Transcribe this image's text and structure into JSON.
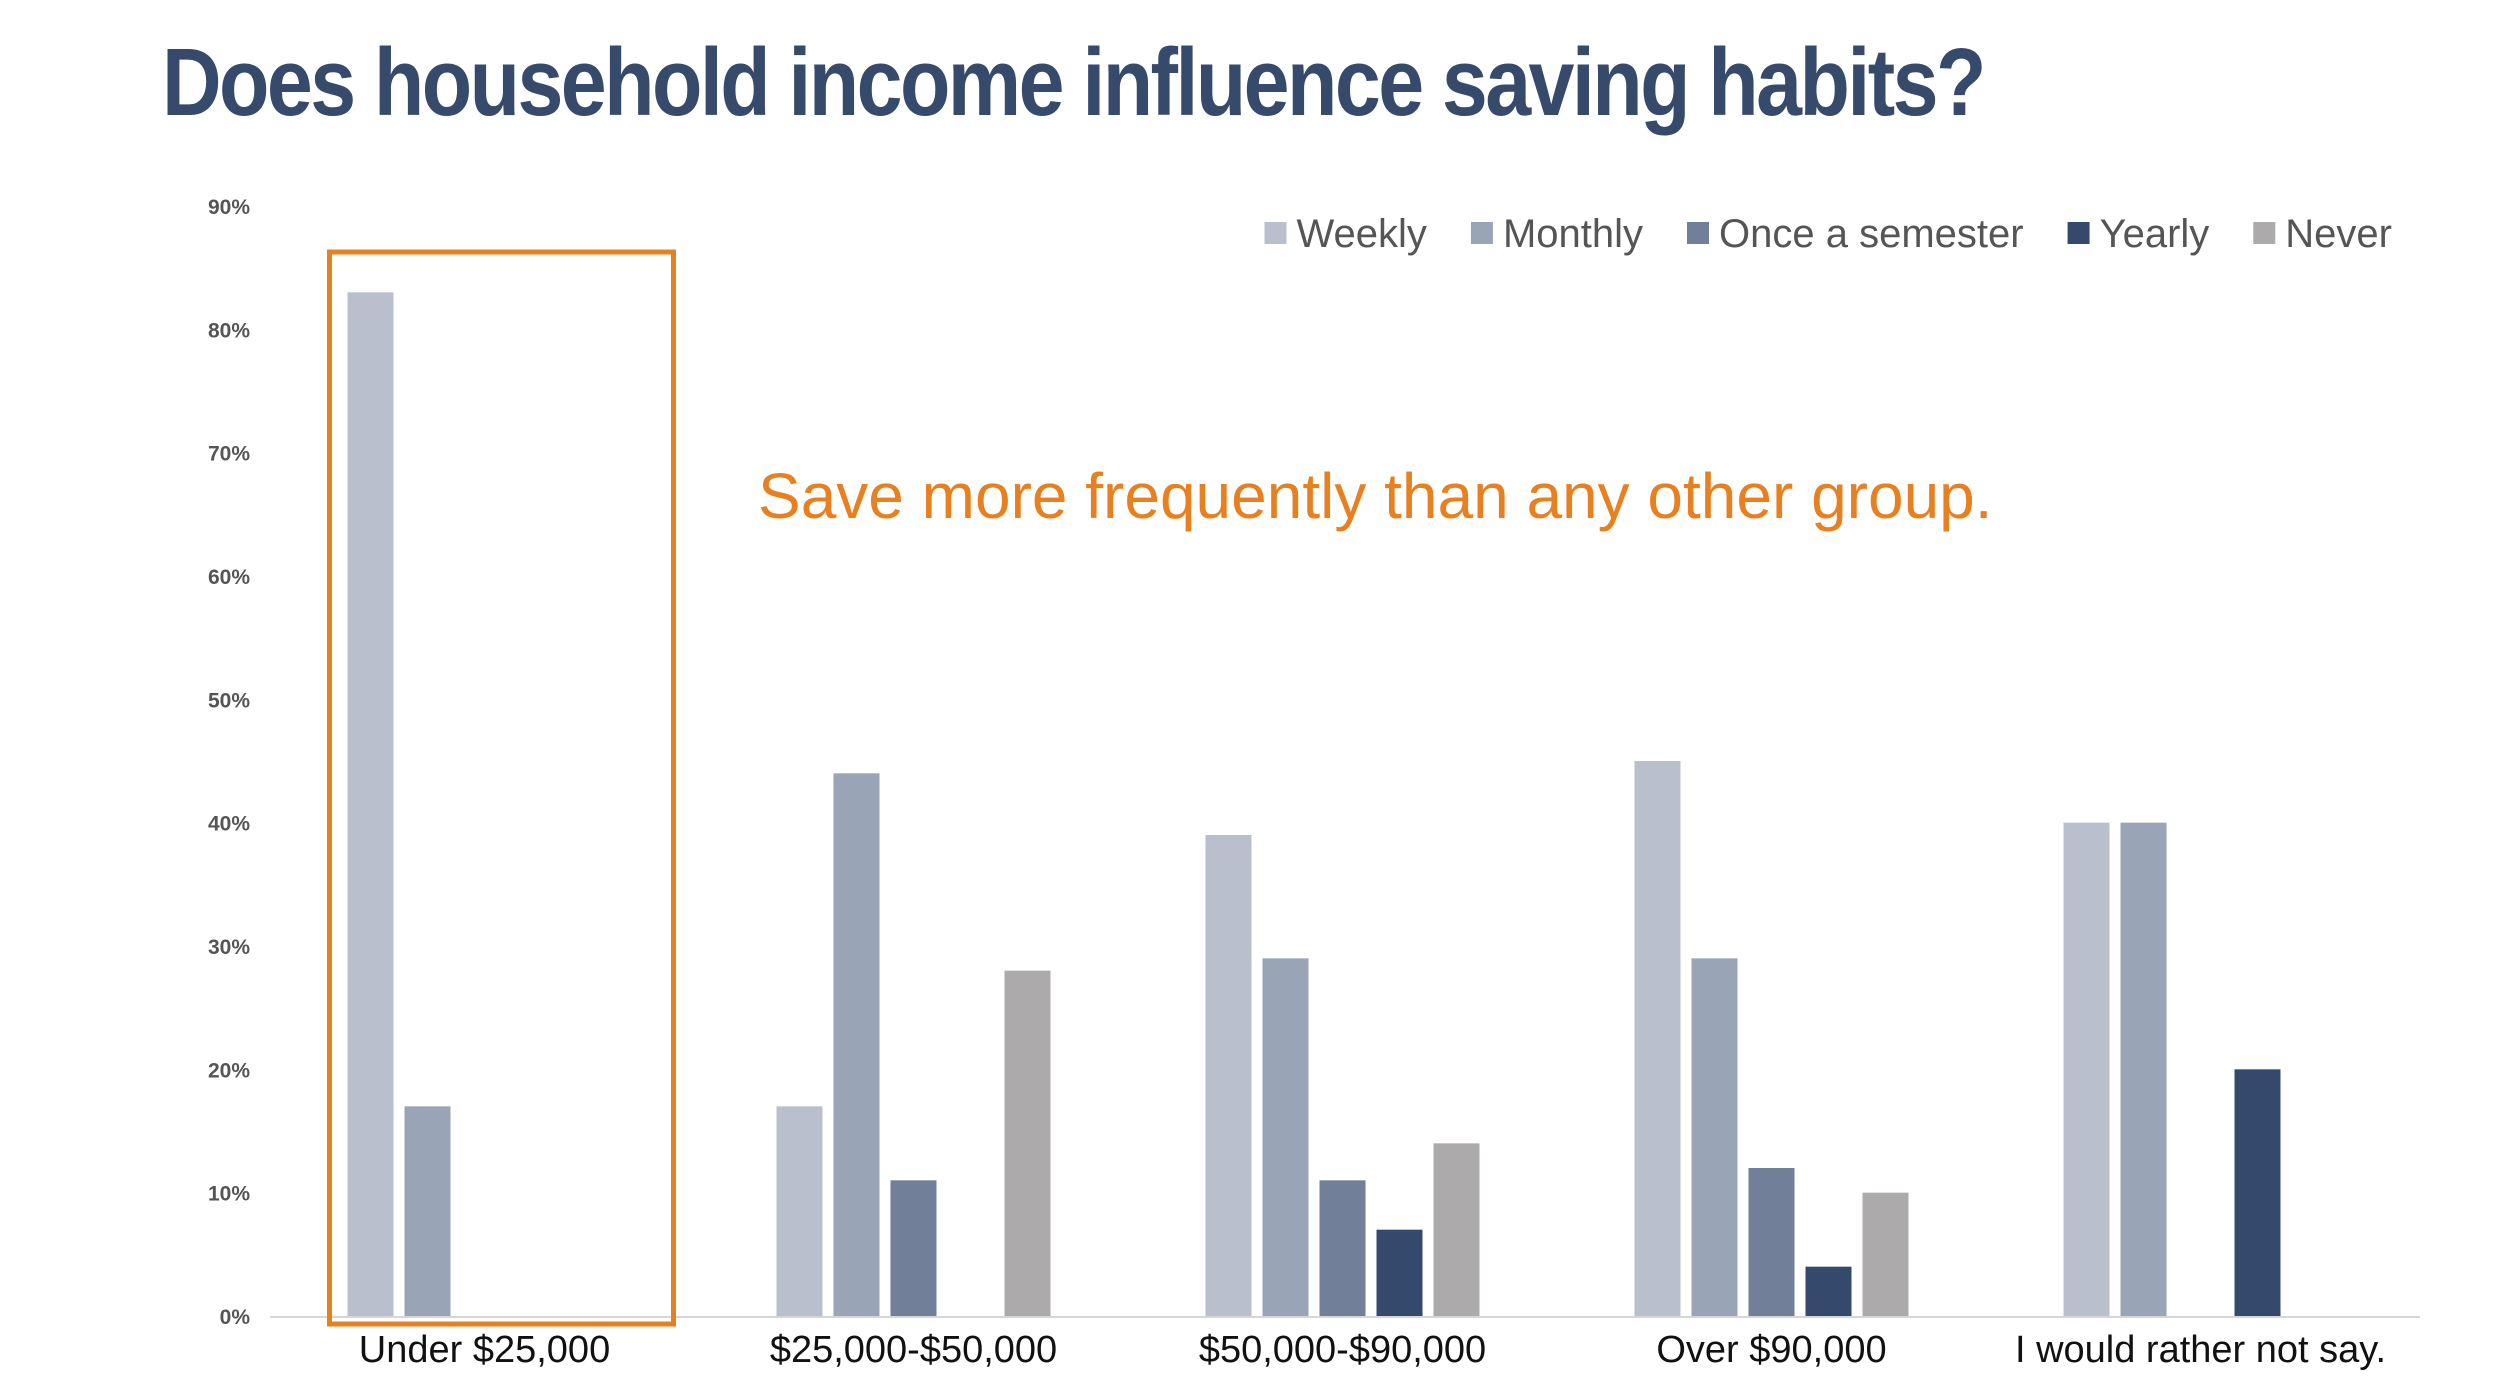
{
  "title": "Does household income influence saving habits?",
  "chart_data": {
    "type": "bar",
    "title": "",
    "xlabel": "",
    "ylabel": "",
    "ylim": [
      0,
      90
    ],
    "yticks": [
      "0%",
      "10%",
      "20%",
      "30%",
      "40%",
      "50%",
      "60%",
      "70%",
      "80%",
      "90%"
    ],
    "categories": [
      "Under $25,000",
      "$25,000-$50,000",
      "$50,000-$90,000",
      "Over $90,000",
      "I would rather not say."
    ],
    "series": [
      {
        "name": "Weekly",
        "color": "#b9bfcd",
        "values": [
          83,
          17,
          39,
          45,
          40
        ]
      },
      {
        "name": "Monthly",
        "color": "#99a4b6",
        "values": [
          17,
          44,
          29,
          29,
          40
        ]
      },
      {
        "name": "Once a semester",
        "color": "#717f98",
        "values": [
          0,
          11,
          11,
          12,
          0
        ]
      },
      {
        "name": "Yearly",
        "color": "#35496c",
        "values": [
          0,
          0,
          7,
          4,
          20
        ]
      },
      {
        "name": "Never",
        "color": "#adaaab",
        "values": [
          0,
          28,
          14,
          10,
          0
        ]
      }
    ],
    "legend_position": "top-right",
    "grid": false,
    "highlight": {
      "category_index": 0,
      "color": "#e8801f"
    },
    "annotation": "Save more frequently than any other group."
  }
}
